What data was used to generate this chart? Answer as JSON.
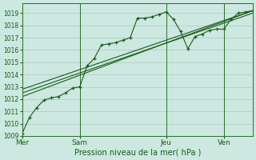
{
  "bg_color": "#cce8e0",
  "grid_color": "#b0c8c0",
  "vline_color": "#2d6e2d",
  "line_color": "#1a5c1a",
  "marker_color": "#1a5c1a",
  "text_color": "#1a5c1a",
  "xlabel": "Pression niveau de la mer( hPa )",
  "ylim": [
    1009,
    1019.8
  ],
  "yticks": [
    1009,
    1010,
    1011,
    1012,
    1013,
    1014,
    1015,
    1016,
    1017,
    1018,
    1019
  ],
  "xtick_labels": [
    "Mer",
    "Sam",
    "Jeu",
    "Ven"
  ],
  "xtick_positions": [
    0,
    48,
    120,
    168
  ],
  "vline_positions": [
    0,
    48,
    120,
    168
  ],
  "total_hours": 192,
  "series": [
    {
      "x": [
        0,
        6,
        12,
        18,
        24,
        30,
        36,
        42,
        48,
        54,
        60,
        66,
        72,
        78,
        84,
        90,
        96,
        102,
        108,
        114,
        120,
        126,
        132,
        138,
        144,
        150,
        156,
        162,
        168,
        174,
        180,
        186,
        192
      ],
      "y": [
        1009.2,
        1010.5,
        1011.3,
        1011.9,
        1012.1,
        1012.2,
        1012.5,
        1012.9,
        1013.0,
        1014.7,
        1015.3,
        1016.4,
        1016.5,
        1016.6,
        1016.8,
        1017.0,
        1018.6,
        1018.6,
        1018.7,
        1018.9,
        1019.1,
        1018.5,
        1017.5,
        1016.1,
        1017.1,
        1017.3,
        1017.6,
        1017.7,
        1017.7,
        1018.5,
        1019.0,
        1019.1,
        1019.2
      ],
      "has_markers": true
    },
    {
      "x": [
        0,
        192
      ],
      "y": [
        1012.2,
        1019.2
      ],
      "has_markers": false
    },
    {
      "x": [
        0,
        192
      ],
      "y": [
        1012.5,
        1019.0
      ],
      "has_markers": false
    },
    {
      "x": [
        0,
        192
      ],
      "y": [
        1012.8,
        1019.2
      ],
      "has_markers": false
    }
  ]
}
